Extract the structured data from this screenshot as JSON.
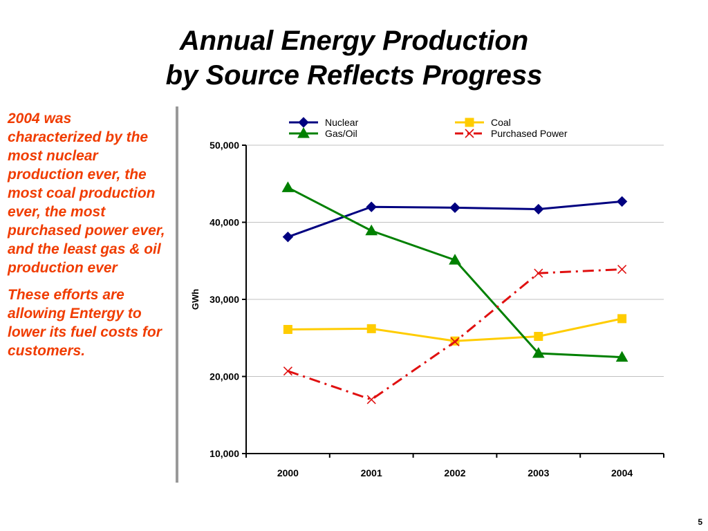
{
  "slide": {
    "title_line1": "Annual Energy Production",
    "title_line2": "by Source Reflects Progress",
    "paragraphs": [
      "2004 was characterized by the most nuclear production ever, the most coal production ever, the most purchased power ever, and the least gas & oil production ever",
      "These efforts are allowing Entergy to lower its fuel costs for customers."
    ],
    "page_number": "5",
    "text_color": "#f03c00"
  },
  "chart_data": {
    "type": "line",
    "title": "",
    "xlabel": "",
    "ylabel": "GWh",
    "categories": [
      "2000",
      "2001",
      "2002",
      "2003",
      "2004"
    ],
    "ylim": [
      10000,
      50000
    ],
    "yticks": [
      10000,
      20000,
      30000,
      40000,
      50000
    ],
    "ytick_labels": [
      "10,000",
      "20,000",
      "30,000",
      "40,000",
      "50,000"
    ],
    "grid": true,
    "legend_position": "top",
    "series": [
      {
        "name": "Nuclear",
        "values": [
          38100,
          42000,
          41900,
          41700,
          42700
        ],
        "color": "#000080",
        "marker": "diamond",
        "dash": "solid"
      },
      {
        "name": "Coal",
        "values": [
          26100,
          26200,
          24600,
          25200,
          27500
        ],
        "color": "#ffcc00",
        "marker": "square",
        "dash": "solid"
      },
      {
        "name": "Gas/Oil",
        "values": [
          44500,
          38900,
          35100,
          23000,
          22500
        ],
        "color": "#008000",
        "marker": "triangle",
        "dash": "solid"
      },
      {
        "name": "Purchased Power",
        "values": [
          20700,
          17000,
          24500,
          33400,
          33900
        ],
        "color": "#e01010",
        "marker": "x",
        "dash": "dashdot"
      }
    ]
  }
}
